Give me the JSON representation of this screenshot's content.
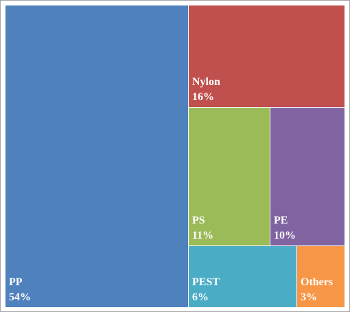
{
  "chart_data": {
    "type": "treemap",
    "title": "",
    "items": [
      {
        "name": "PP",
        "label": "54%",
        "value": 54,
        "color": "#4f81bd"
      },
      {
        "name": "Nylon",
        "label": "16%",
        "value": 16,
        "color": "#c0504d"
      },
      {
        "name": "PS",
        "label": "11%",
        "value": 11,
        "color": "#9bbb59"
      },
      {
        "name": "PE",
        "label": "10%",
        "value": 10,
        "color": "#8064a2"
      },
      {
        "name": "PEST",
        "label": "6%",
        "value": 6,
        "color": "#4bacc6"
      },
      {
        "name": "Others",
        "label": "3%",
        "value": 3,
        "color": "#f79646"
      }
    ]
  }
}
